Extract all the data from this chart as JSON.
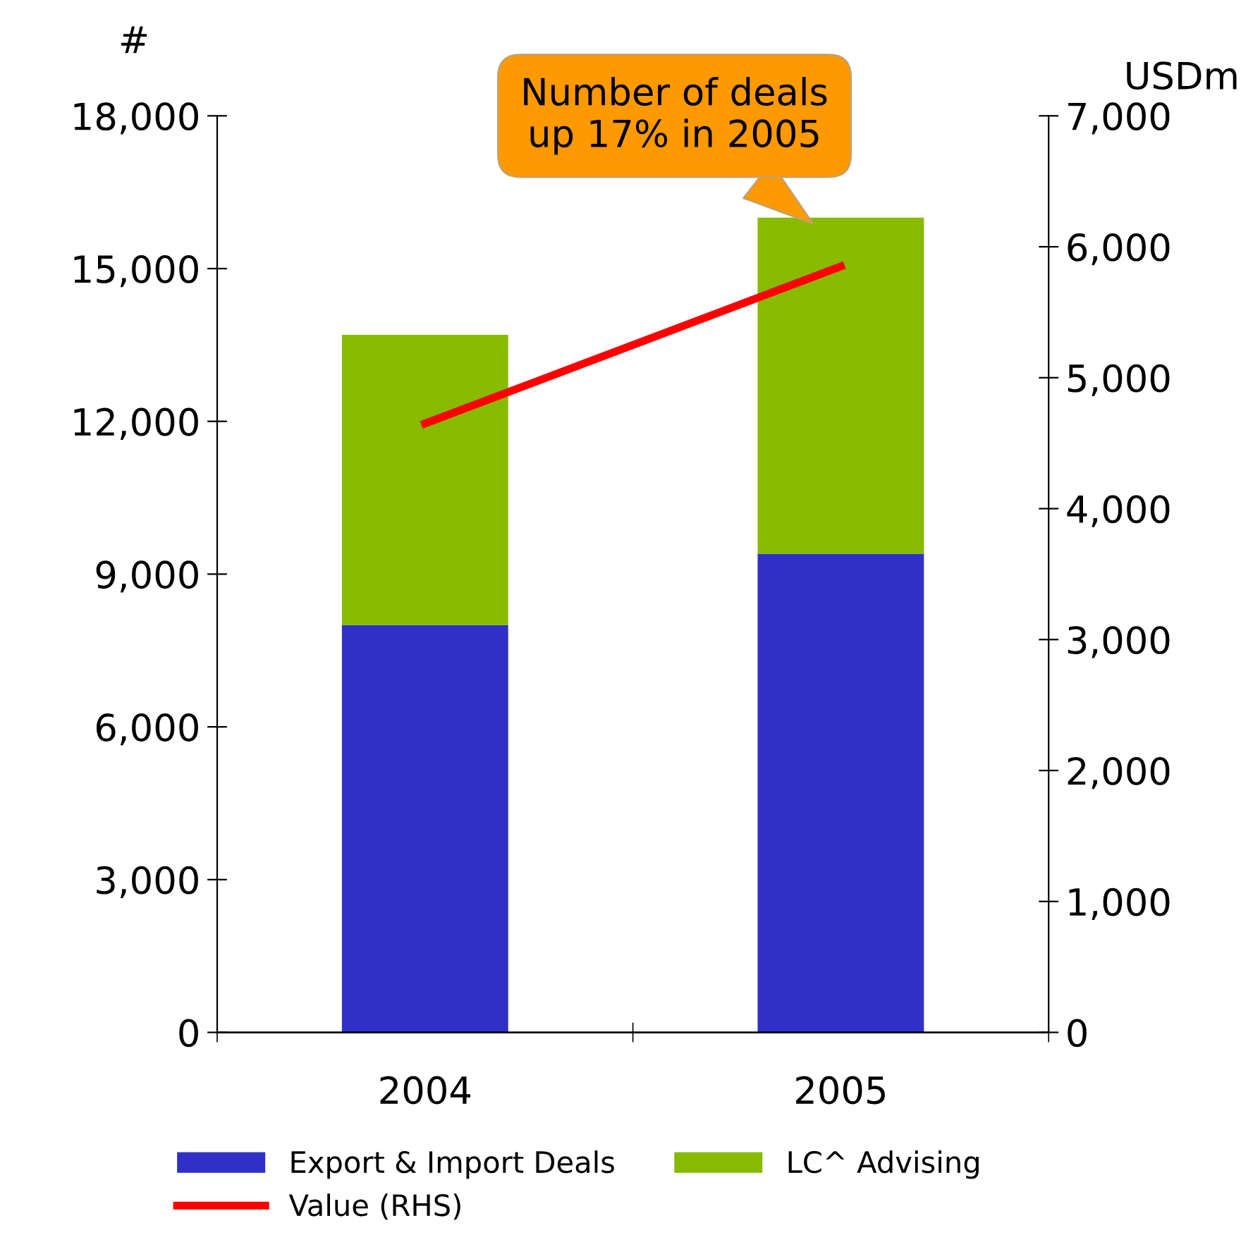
{
  "chart_data": {
    "type": "bar",
    "stacked": true,
    "categories": [
      "2004",
      "2005"
    ],
    "series": [
      {
        "name": "Export & Import Deals",
        "color": "#3030c8",
        "values": [
          8000,
          9400
        ]
      },
      {
        "name": "LC^ Advising",
        "color": "#88bb00",
        "values": [
          5700,
          6600
        ]
      },
      {
        "name": "Value (RHS)",
        "color": "#ff0000",
        "type": "line",
        "axis": "y2",
        "values": [
          4650,
          5850
        ]
      }
    ],
    "ylabel": "#",
    "y2label": "USDm",
    "ylim": [
      0,
      18000
    ],
    "yticks": [
      {
        "value": 0,
        "label": "0"
      },
      {
        "value": 3000,
        "label": "3,000"
      },
      {
        "value": 6000,
        "label": "6,000"
      },
      {
        "value": 9000,
        "label": "9,000"
      },
      {
        "value": 12000,
        "label": "12,000"
      },
      {
        "value": 15000,
        "label": "15,000"
      },
      {
        "value": 18000,
        "label": "18,000"
      }
    ],
    "y2lim": [
      0,
      7000
    ],
    "y2ticks": [
      {
        "value": 0,
        "label": "0"
      },
      {
        "value": 1000,
        "label": "1,000"
      },
      {
        "value": 2000,
        "label": "2,000"
      },
      {
        "value": 3000,
        "label": "3,000"
      },
      {
        "value": 4000,
        "label": "4,000"
      },
      {
        "value": 5000,
        "label": "5,000"
      },
      {
        "value": 6000,
        "label": "6,000"
      },
      {
        "value": 7000,
        "label": "7,000"
      }
    ],
    "annotations": [
      "Number of deals\nup 17% in 2005"
    ],
    "legend": "bottom",
    "grid": false
  }
}
